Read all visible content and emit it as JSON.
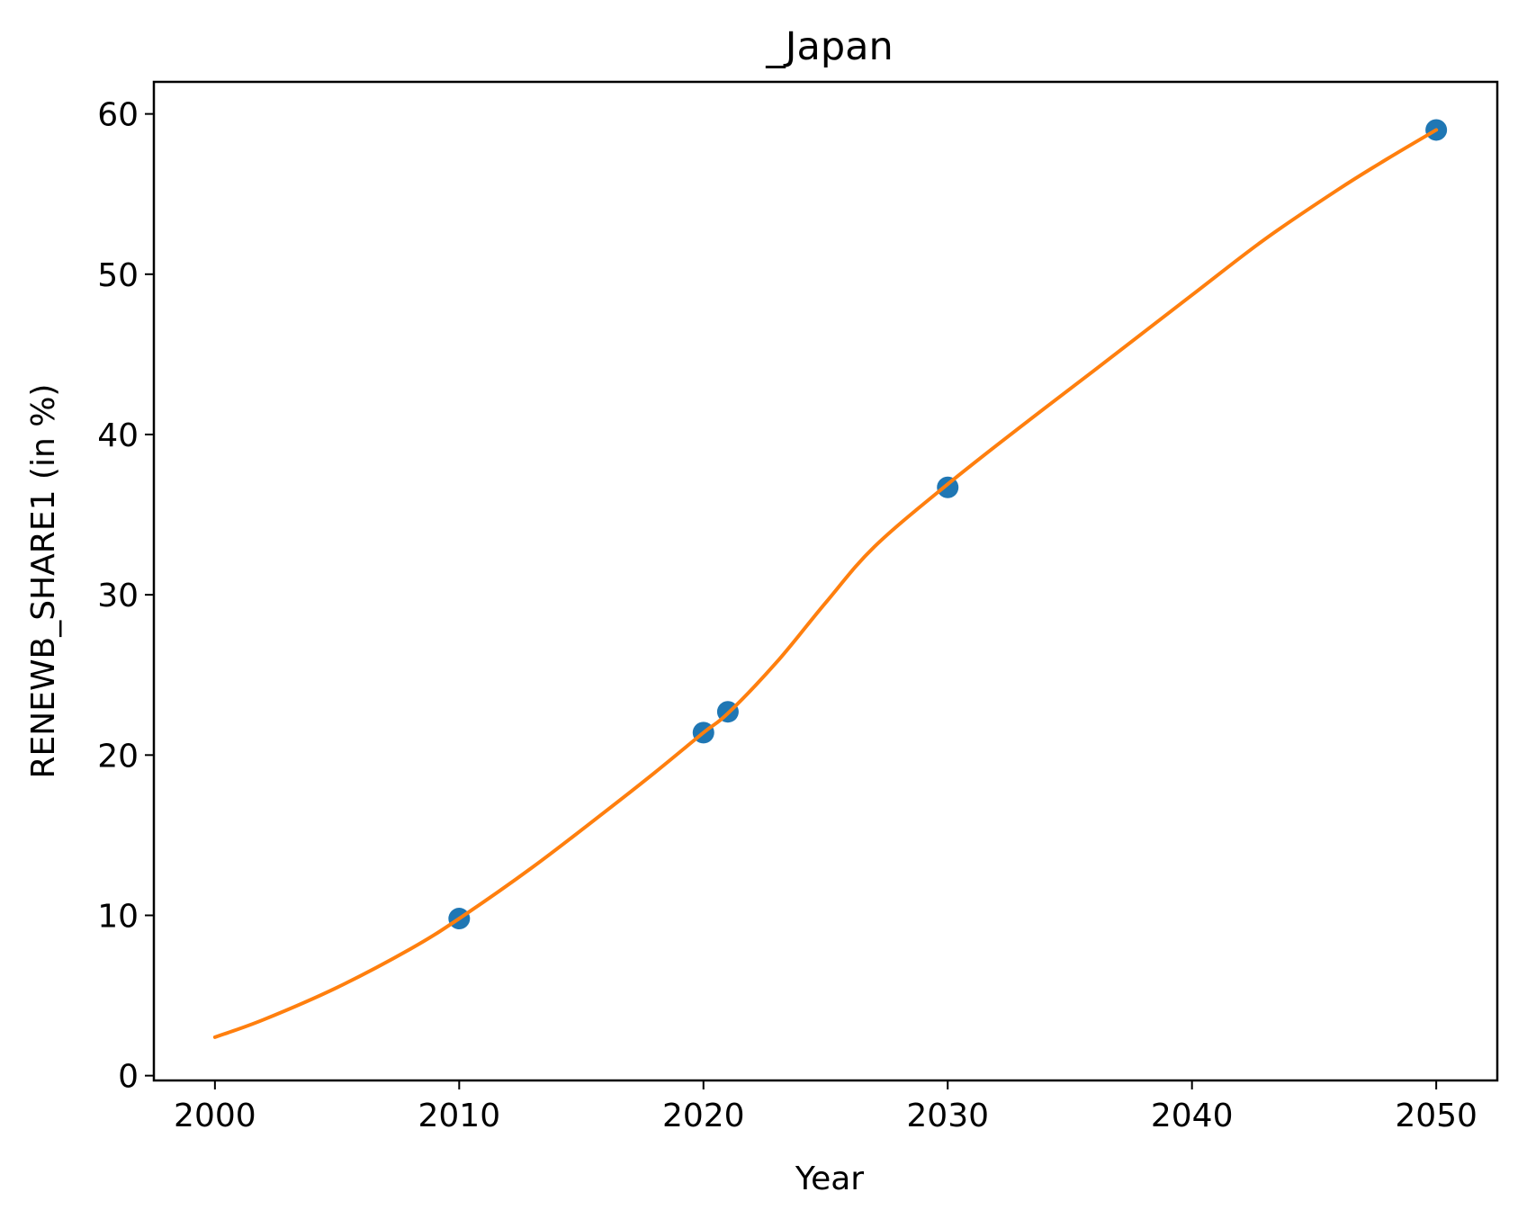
{
  "chart_data": {
    "type": "scatter",
    "title": "_Japan",
    "xlabel": "Year",
    "ylabel": "RENEWB_SHARE1 (in %)",
    "xlim": [
      1997.5,
      2052.5
    ],
    "ylim": [
      -0.3,
      62
    ],
    "x_ticks": [
      2000,
      2010,
      2020,
      2030,
      2040,
      2050
    ],
    "y_ticks": [
      0,
      10,
      20,
      30,
      40,
      50,
      60
    ],
    "grid": false,
    "series": [
      {
        "kind": "scatter",
        "color": "#1f77b4",
        "points": [
          {
            "x": 2010,
            "y": 9.8
          },
          {
            "x": 2020,
            "y": 21.4
          },
          {
            "x": 2021,
            "y": 22.7
          },
          {
            "x": 2030,
            "y": 36.7
          },
          {
            "x": 2050,
            "y": 59.0
          }
        ]
      },
      {
        "kind": "line",
        "color": "#ff7f0e",
        "points": [
          {
            "x": 2000,
            "y": 2.4
          },
          {
            "x": 2002,
            "y": 3.5
          },
          {
            "x": 2005,
            "y": 5.5
          },
          {
            "x": 2008,
            "y": 7.9
          },
          {
            "x": 2010,
            "y": 9.8
          },
          {
            "x": 2013,
            "y": 13.0
          },
          {
            "x": 2016,
            "y": 16.5
          },
          {
            "x": 2018,
            "y": 18.9
          },
          {
            "x": 2020,
            "y": 21.4
          },
          {
            "x": 2021,
            "y": 22.6
          },
          {
            "x": 2023,
            "y": 25.8
          },
          {
            "x": 2025,
            "y": 29.5
          },
          {
            "x": 2027,
            "y": 33.0
          },
          {
            "x": 2030,
            "y": 36.9
          },
          {
            "x": 2033,
            "y": 40.5
          },
          {
            "x": 2036,
            "y": 44.0
          },
          {
            "x": 2040,
            "y": 48.7
          },
          {
            "x": 2043,
            "y": 52.2
          },
          {
            "x": 2046,
            "y": 55.3
          },
          {
            "x": 2048,
            "y": 57.2
          },
          {
            "x": 2050,
            "y": 59.0
          }
        ]
      }
    ]
  }
}
